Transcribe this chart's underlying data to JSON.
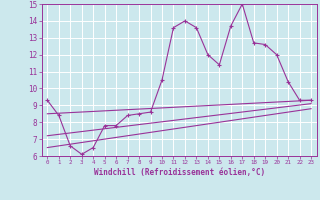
{
  "xlabel": "Windchill (Refroidissement éolien,°C)",
  "background_color": "#cce8ed",
  "grid_color": "#ffffff",
  "line_color": "#993399",
  "spine_color": "#993399",
  "xlim": [
    -0.5,
    23.5
  ],
  "ylim": [
    6,
    15
  ],
  "xticks": [
    0,
    1,
    2,
    3,
    4,
    5,
    6,
    7,
    8,
    9,
    10,
    11,
    12,
    13,
    14,
    15,
    16,
    17,
    18,
    19,
    20,
    21,
    22,
    23
  ],
  "yticks": [
    6,
    7,
    8,
    9,
    10,
    11,
    12,
    13,
    14,
    15
  ],
  "line1_x": [
    0,
    1,
    2,
    3,
    4,
    5,
    6,
    7,
    8,
    9,
    10,
    11,
    12,
    13,
    14,
    15,
    16,
    17,
    18,
    19,
    20,
    21,
    22,
    23
  ],
  "line1_y": [
    9.3,
    8.4,
    6.6,
    6.1,
    6.5,
    7.8,
    7.8,
    8.4,
    8.5,
    8.6,
    10.5,
    13.6,
    14.0,
    13.6,
    12.0,
    11.4,
    13.7,
    15.0,
    12.7,
    12.6,
    12.0,
    10.4,
    9.3,
    9.3
  ],
  "line2_x": [
    0,
    23
  ],
  "line2_y": [
    8.5,
    9.3
  ],
  "line3_x": [
    0,
    23
  ],
  "line3_y": [
    7.2,
    9.1
  ],
  "line4_x": [
    0,
    23
  ],
  "line4_y": [
    6.5,
    8.8
  ]
}
